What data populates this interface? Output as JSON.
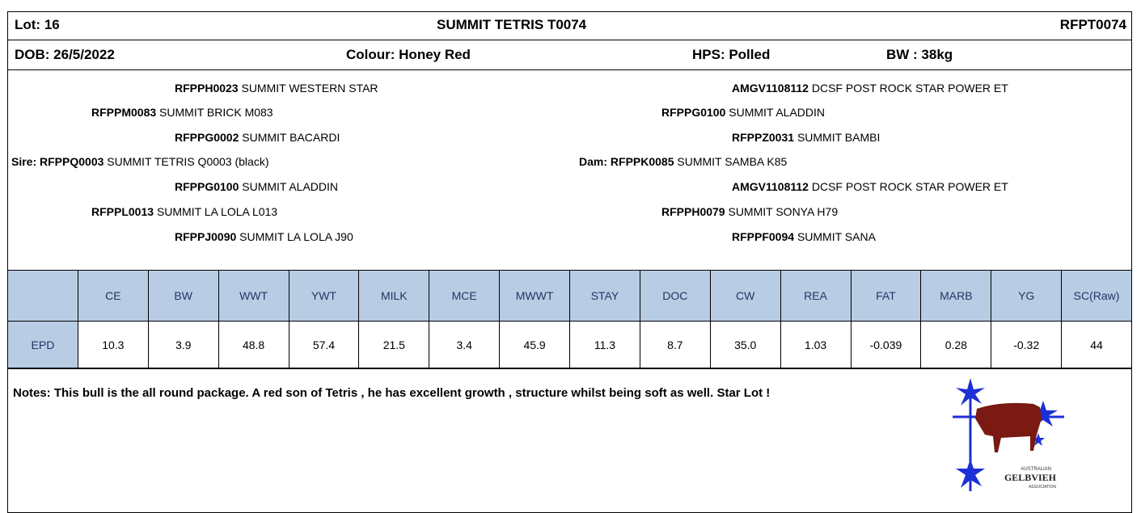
{
  "header": {
    "lot": "Lot: 16",
    "name": "SUMMIT TETRIS T0074",
    "id": "RFPT0074"
  },
  "details": {
    "dob": "DOB: 26/5/2022",
    "colour": "Colour:  Honey Red",
    "hps": "HPS: Polled",
    "bw": "BW : 38kg"
  },
  "pedigree": {
    "sire_side": [
      {
        "code": "RFPPH0023",
        "name": "SUMMIT WESTERN STAR"
      },
      {
        "code": "RFPPM0083",
        "name": "SUMMIT BRICK M083"
      },
      {
        "code": "RFPPG0002",
        "name": "SUMMIT BACARDI"
      },
      {
        "label": "Sire:",
        "code": "RFPPQ0003",
        "name": "SUMMIT TETRIS Q0003 (black)"
      },
      {
        "code": "RFPPG0100",
        "name": "SUMMIT ALADDIN"
      },
      {
        "code": "RFPPL0013",
        "name": "SUMMIT LA LOLA L013"
      },
      {
        "code": "RFPPJ0090",
        "name": "SUMMIT LA LOLA J90"
      }
    ],
    "dam_side": [
      {
        "code": "AMGV1108112",
        "name": "DCSF POST ROCK STAR POWER ET"
      },
      {
        "code": "RFPPG0100",
        "name": "SUMMIT ALADDIN"
      },
      {
        "code": "RFPPZ0031",
        "name": "SUMMIT BAMBI"
      },
      {
        "label": "Dam:",
        "code": "RFPPK0085",
        "name": "SUMMIT SAMBA K85"
      },
      {
        "code": "AMGV1108112",
        "name": "DCSF POST ROCK STAR POWER ET"
      },
      {
        "code": "RFPPH0079",
        "name": "SUMMIT SONYA H79"
      },
      {
        "code": "RFPPF0094",
        "name": "SUMMIT SANA"
      }
    ]
  },
  "table": {
    "columns": [
      "",
      "CE",
      "BW",
      "WWT",
      "YWT",
      "MILK",
      "MCE",
      "MWWT",
      "STAY",
      "DOC",
      "CW",
      "REA",
      "FAT",
      "MARB",
      "YG",
      "SC(Raw)"
    ],
    "rows": [
      [
        "EPD",
        "10.3",
        "3.9",
        "48.8",
        "57.4",
        "21.5",
        "3.4",
        "45.9",
        "11.3",
        "8.7",
        "35.0",
        "1.03",
        "-0.039",
        "0.28",
        "-0.32",
        "44"
      ]
    ]
  },
  "notes": "Notes: This bull is the all round package.  A red son of Tetris , he has excellent growth , structure whilst being soft as well.  Star Lot !",
  "logo": {
    "line1": "AUSTRALIAN",
    "line2": "GELBVIEH",
    "line3": "ASSOCIATION"
  }
}
